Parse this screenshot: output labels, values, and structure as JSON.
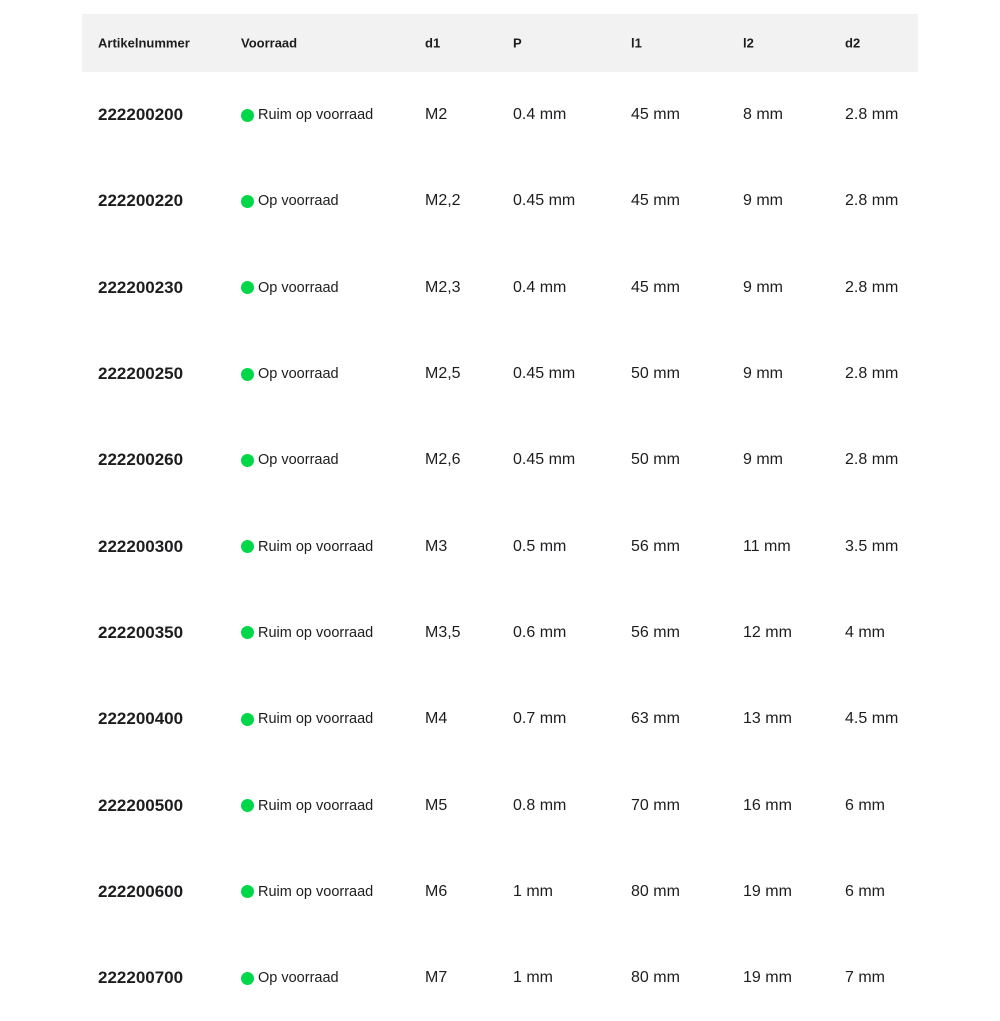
{
  "colors": {
    "in_stock": "#00d84a",
    "header_bg": "#f2f2f2"
  },
  "headers": [
    "Artikelnummer",
    "Voorraad",
    "d1",
    "P",
    "l1",
    "l2",
    "d2"
  ],
  "rows": [
    [
      "222200200",
      "Ruim op voorraad",
      "M2",
      "0.4 mm",
      "45 mm",
      "8 mm",
      "2.8 mm"
    ],
    [
      "222200220",
      "Op voorraad",
      "M2,2",
      "0.45 mm",
      "45 mm",
      "9 mm",
      "2.8 mm"
    ],
    [
      "222200230",
      "Op voorraad",
      "M2,3",
      "0.4 mm",
      "45 mm",
      "9 mm",
      "2.8 mm"
    ],
    [
      "222200250",
      "Op voorraad",
      "M2,5",
      "0.45 mm",
      "50 mm",
      "9 mm",
      "2.8 mm"
    ],
    [
      "222200260",
      "Op voorraad",
      "M2,6",
      "0.45 mm",
      "50 mm",
      "9 mm",
      "2.8 mm"
    ],
    [
      "222200300",
      "Ruim op voorraad",
      "M3",
      "0.5 mm",
      "56 mm",
      "11 mm",
      "3.5 mm"
    ],
    [
      "222200350",
      "Ruim op voorraad",
      "M3,5",
      "0.6 mm",
      "56 mm",
      "12 mm",
      "4 mm"
    ],
    [
      "222200400",
      "Ruim op voorraad",
      "M4",
      "0.7 mm",
      "63 mm",
      "13 mm",
      "4.5 mm"
    ],
    [
      "222200500",
      "Ruim op voorraad",
      "M5",
      "0.8 mm",
      "70 mm",
      "16 mm",
      "6 mm"
    ],
    [
      "222200600",
      "Ruim op voorraad",
      "M6",
      "1 mm",
      "80 mm",
      "19 mm",
      "6 mm"
    ],
    [
      "222200700",
      "Op voorraad",
      "M7",
      "1 mm",
      "80 mm",
      "19 mm",
      "7 mm"
    ]
  ]
}
